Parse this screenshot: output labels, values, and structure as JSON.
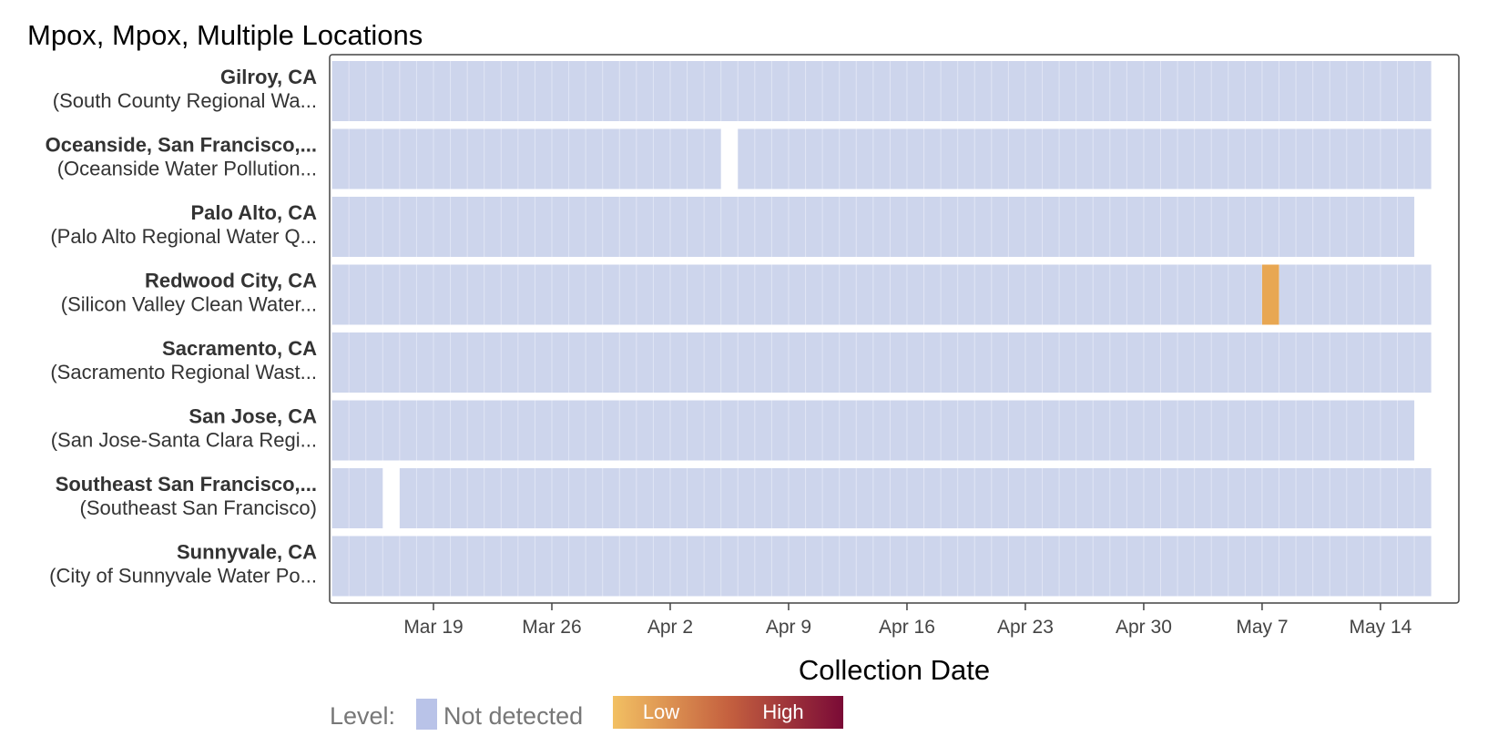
{
  "chart_data": {
    "type": "heatmap",
    "title": "Mpox, Mpox, Multiple Locations",
    "xlabel": "Collection Date",
    "x_tick_labels": [
      "Mar 19",
      "Mar 26",
      "Apr 2",
      "Apr 9",
      "Apr 16",
      "Apr 23",
      "Apr 30",
      "May 7",
      "May 14"
    ],
    "x_tick_days": [
      0,
      7,
      14,
      21,
      28,
      35,
      42,
      49,
      56
    ],
    "x_range_days": [
      -6,
      59
    ],
    "rows": [
      {
        "name": "Gilroy, CA",
        "site": "(South County Regional Wa...",
        "start": -6,
        "end": 59,
        "gaps": [],
        "detections": []
      },
      {
        "name": "Oceanside, San Francisco,...",
        "site": "(Oceanside Water Pollution...",
        "start": -6,
        "end": 59,
        "gaps": [
          [
            17,
            18
          ]
        ],
        "detections": []
      },
      {
        "name": "Palo Alto, CA",
        "site": "(Palo Alto Regional Water Q...",
        "start": -6,
        "end": 58,
        "gaps": [],
        "detections": []
      },
      {
        "name": "Redwood City, CA",
        "site": "(Silicon Valley Clean Water...",
        "start": -6,
        "end": 59,
        "gaps": [],
        "detections": [
          {
            "start": 49,
            "end": 50,
            "level": "Low"
          }
        ]
      },
      {
        "name": "Sacramento, CA",
        "site": "(Sacramento Regional Wast...",
        "start": -6,
        "end": 59,
        "gaps": [],
        "detections": []
      },
      {
        "name": "San Jose, CA",
        "site": "(San Jose-Santa Clara Regi...",
        "start": -6,
        "end": 58,
        "gaps": [],
        "detections": []
      },
      {
        "name": "Southeast San Francisco,...",
        "site": "(Southeast San Francisco)",
        "start": -6,
        "end": 59,
        "gaps": [
          [
            -3,
            -2
          ]
        ],
        "detections": []
      },
      {
        "name": "Sunnyvale, CA",
        "site": "(City of Sunnyvale Water Po...",
        "start": -6,
        "end": 59,
        "gaps": [],
        "detections": []
      }
    ],
    "legend": {
      "label": "Level:",
      "not_detected": "Not detected",
      "low": "Low",
      "high": "High"
    },
    "colors": {
      "not_detected": "#cdd5ec",
      "not_detected_swatch": "#b9c3e8",
      "low": "#e8a752",
      "grad_start": "#f2c063",
      "grad_mid": "#c5613f",
      "grad_end": "#7a0a36"
    }
  }
}
